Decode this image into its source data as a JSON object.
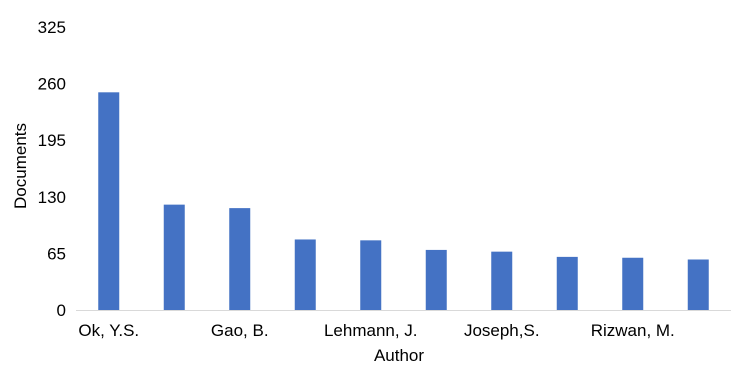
{
  "chart_data": {
    "type": "bar",
    "title": "",
    "xlabel": "Author",
    "ylabel": "Documents",
    "ylim": [
      0,
      325
    ],
    "yticks": [
      0,
      65,
      130,
      195,
      260,
      325
    ],
    "grid": false,
    "legend": "none",
    "bar_color": "#4472C4",
    "categories": [
      "Ok, Y.S.",
      "",
      "Gao, B.",
      "",
      "Lehmann, J.",
      "",
      "Joseph,S.",
      "",
      "Rizwan, M.",
      ""
    ],
    "values": [
      250,
      121,
      117,
      81,
      80,
      69,
      67,
      61,
      60,
      58
    ]
  }
}
